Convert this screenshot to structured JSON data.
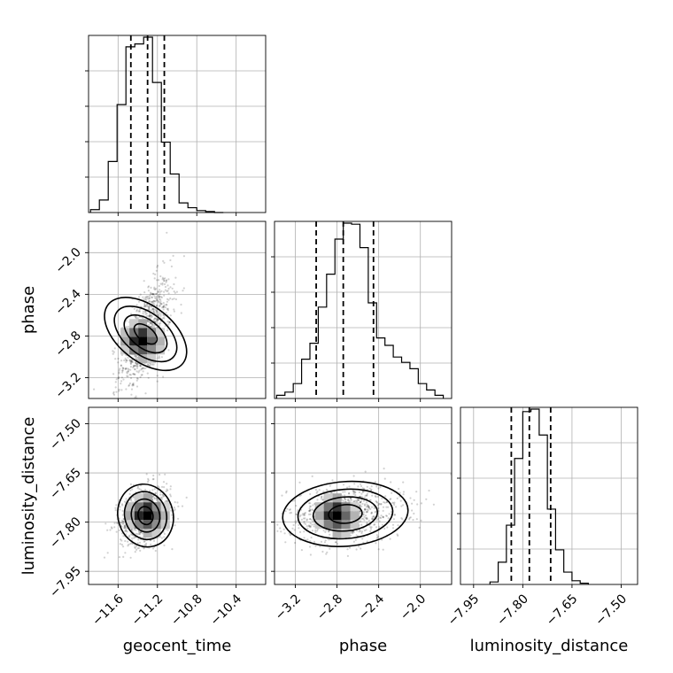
{
  "chart_data": {
    "type": "corner",
    "parameters": [
      "geocent_time",
      "phase",
      "luminosity_distance"
    ],
    "axes": {
      "geocent_time": {
        "label": "geocent_time",
        "range": [
          -11.9,
          -10.1
        ],
        "ticks": [
          -11.6,
          -11.2,
          -10.8,
          -10.4
        ],
        "tick_labels": [
          "−11.6",
          "−11.2",
          "−10.8",
          "−10.4"
        ]
      },
      "phase": {
        "label": "phase",
        "range": [
          -3.4,
          -1.7
        ],
        "ticks": [
          -3.2,
          -2.8,
          -2.4,
          -2.0
        ],
        "tick_labels": [
          "−3.2",
          "−2.8",
          "−2.4",
          "−2.0"
        ]
      },
      "luminosity_distance": {
        "label": "luminosity_distance",
        "range": [
          -7.99,
          -7.45
        ],
        "ticks": [
          -7.95,
          -7.8,
          -7.65,
          -7.5
        ],
        "tick_labels": [
          "−7.95",
          "−7.80",
          "−7.65",
          "−7.50"
        ]
      }
    },
    "marginals": [
      {
        "parameter": "geocent_time",
        "bin_edges": [
          -11.88,
          -11.79,
          -11.7,
          -11.61,
          -11.52,
          -11.43,
          -11.34,
          -11.25,
          -11.16,
          -11.07,
          -10.98,
          -10.89,
          -10.8,
          -10.71,
          -10.62,
          -10.53
        ],
        "counts": [
          3,
          13,
          53,
          112,
          172,
          175,
          182,
          135,
          73,
          40,
          10,
          5,
          2,
          1,
          0
        ],
        "quantiles": [
          -11.47,
          -11.3,
          -11.13
        ]
      },
      {
        "parameter": "phase",
        "bin_edges": [
          -3.38,
          -3.3,
          -3.22,
          -3.14,
          -3.06,
          -2.98,
          -2.9,
          -2.82,
          -2.74,
          -2.66,
          -2.58,
          -2.5,
          -2.42,
          -2.34,
          -2.26,
          -2.18,
          -2.1,
          -2.02,
          -1.94,
          -1.86,
          -1.78
        ],
        "counts": [
          3,
          6,
          14,
          37,
          52,
          86,
          117,
          150,
          165,
          164,
          142,
          90,
          57,
          50,
          39,
          34,
          28,
          14,
          8,
          3
        ],
        "quantiles": [
          -3.0,
          -2.74,
          -2.45
        ]
      },
      {
        "parameter": "luminosity_distance",
        "bin_edges": [
          -7.9,
          -7.875,
          -7.85,
          -7.825,
          -7.8,
          -7.775,
          -7.75,
          -7.725,
          -7.7,
          -7.675,
          -7.65,
          -7.625,
          -7.6
        ],
        "counts": [
          2,
          18,
          48,
          102,
          140,
          142,
          121,
          61,
          28,
          10,
          3,
          1
        ],
        "quantiles": [
          -7.835,
          -7.78,
          -7.715
        ]
      }
    ],
    "joint_panels": [
      {
        "x": "geocent_time",
        "y": "phase",
        "center": [
          -11.32,
          -2.78
        ],
        "sigma": [
          0.13,
          0.26
        ],
        "correlation": 0.6,
        "peak": [
          -11.35,
          -2.85
        ]
      },
      {
        "x": "geocent_time",
        "y": "luminosity_distance",
        "center": [
          -11.32,
          -7.78
        ],
        "sigma": [
          0.13,
          0.045
        ],
        "correlation": 0.25,
        "peak": [
          -11.3,
          -7.78
        ]
      },
      {
        "x": "phase",
        "y": "luminosity_distance",
        "center": [
          -2.72,
          -7.775
        ],
        "sigma": [
          0.28,
          0.045
        ],
        "correlation": 0.15,
        "peak": [
          -2.8,
          -7.78
        ]
      }
    ],
    "contour_levels": [
      "0.5 sigma",
      "1 sigma",
      "1.5 sigma",
      "2 sigma"
    ],
    "grid": true,
    "legend": "none"
  }
}
